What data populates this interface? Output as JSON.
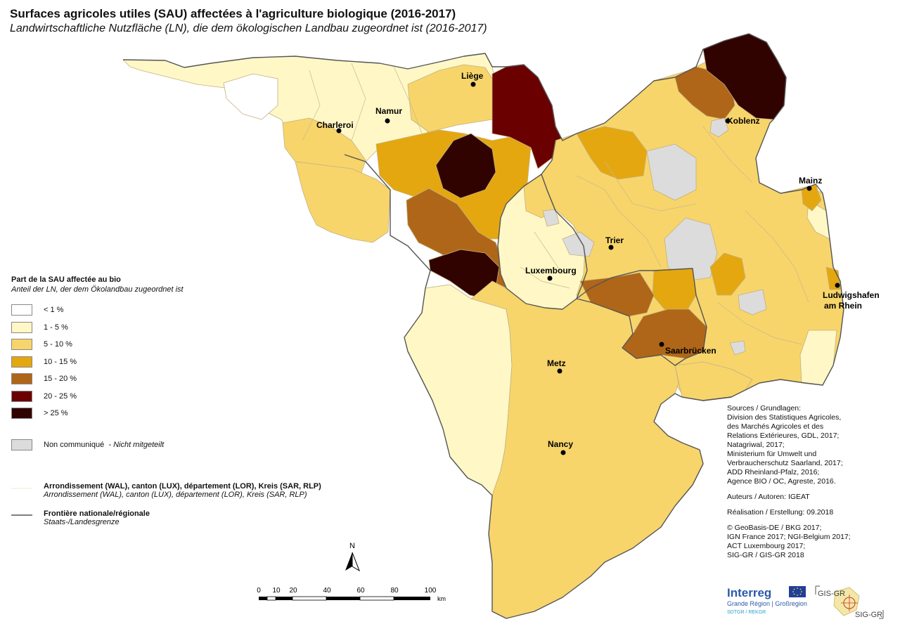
{
  "title": "Surfaces agricoles utiles (SAU) affectées à l'agriculture biologique (2016-2017)",
  "subtitle": "Landwirtschaftliche Nutzfläche (LN), die dem ökologischen Landbau zugeordnet ist (2016-2017)",
  "legend": {
    "title": "Part de la SAU affectée au bio",
    "subtitle": "Anteil der LN, der dem Ökolandbau zugeordnet ist",
    "classes": [
      {
        "label": "< 1 %",
        "color": "#ffffff"
      },
      {
        "label": "1 - 5 %",
        "color": "#fff8c6"
      },
      {
        "label": "5 - 10 %",
        "color": "#f7d56b"
      },
      {
        "label": "10 - 15 %",
        "color": "#e4a70f"
      },
      {
        "label": "15 - 20 %",
        "color": "#b06618"
      },
      {
        "label": "20 - 25 %",
        "color": "#6b0000"
      },
      {
        "label": "> 25 %",
        "color": "#300300"
      }
    ],
    "nodata": {
      "label_fr": "Non communiqué",
      "label_de": "- Nicht mitgeteilt",
      "color": "#dcdcdc"
    },
    "admin_units": {
      "label_bold": "Arrondissement (WAL), canton (LUX), département (LOR), Kreis (SAR, RLP)",
      "label_italic": "Arrondissement (WAL), canton (LUX), département (LOR), Kreis (SAR, RLP)"
    },
    "border": {
      "label_bold": "Frontière nationale/régionale",
      "label_italic": "Staats-/Landesgrenze"
    }
  },
  "cities": [
    {
      "name": "Liège"
    },
    {
      "name": "Namur"
    },
    {
      "name": "Charleroi"
    },
    {
      "name": "Koblenz"
    },
    {
      "name": "Mainz"
    },
    {
      "name": "Trier"
    },
    {
      "name": "Luxembourg"
    },
    {
      "name": "Ludwigshafen"
    },
    {
      "name": "am Rhein"
    },
    {
      "name": "Saarbrücken"
    },
    {
      "name": "Metz"
    },
    {
      "name": "Nancy"
    }
  ],
  "scale_bar": {
    "ticks": [
      "0",
      "10",
      "20",
      "40",
      "60",
      "80",
      "100"
    ],
    "unit": "km"
  },
  "north_label": "N",
  "sources": [
    "Sources / Grundlagen:",
    "Division des Statistiques Agricoles,",
    "des Marchés Agricoles et des",
    "Relations Extérieures, GDL, 2017;",
    "Natagriwal, 2017;",
    "Ministerium für Umwelt und",
    "Verbraucherschutz  Saarland, 2017;",
    "ADD Rheinland-Pfalz, 2016;",
    "Agence BIO / OC, Agreste, 2016."
  ],
  "authors": "Auteurs / Autoren: IGEAT",
  "realisation": "Réalisation / Erstellung: 09.2018",
  "copyright": [
    "© GeoBasis-DE / BKG 2017;",
    "IGN France 2017; NGI-Belgium 2017;",
    "ACT Luxembourg 2017;",
    "SIG-GR / GIS-GR 2018"
  ],
  "logos": {
    "interreg": "Interreg",
    "interreg_sub": "Grande Région | Großregion",
    "interreg_small": "SDTGR / REKGR",
    "gis_top": "GIS-GR",
    "gis_bottom": "SIG-GR"
  },
  "colors": {
    "border": "#555555",
    "district": "#c9b98a"
  }
}
